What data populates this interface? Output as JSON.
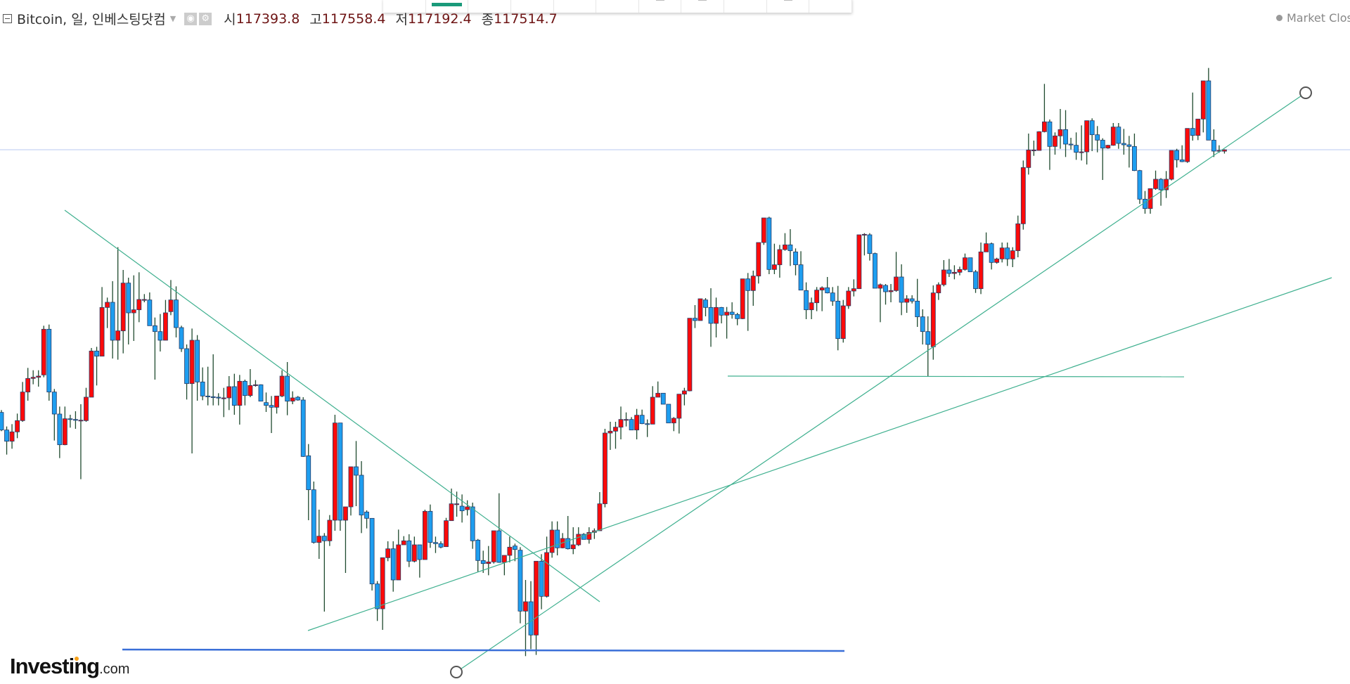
{
  "header": {
    "symbol_title": "Bitcoin, 일, 인베스팅닷컴",
    "open_label": "시",
    "open_value": "117393.8",
    "high_label": "고",
    "high_value": "117558.4",
    "low_label": "저",
    "low_value": "117192.4",
    "close_label": "종",
    "close_value": "117514.7",
    "icons": [
      "collapse-icon",
      "dropdown-caret-icon",
      "eye-icon",
      "gear-icon"
    ]
  },
  "status": {
    "market": "Market Clos"
  },
  "logo": {
    "name": "Investing",
    "suffix": ".com"
  },
  "colors": {
    "up": "#ff0a0a",
    "down": "#1e9ef0",
    "wick": "#1f4a2e",
    "border": "#243a66",
    "trendline": "#3fb08f",
    "support": "#3a6fd8",
    "price_line": "#b9c9f2"
  },
  "chart_data": {
    "type": "candlestick",
    "title": "Bitcoin, 일, 인베스팅닷컴",
    "interval": "daily",
    "ylim": [
      72000,
      130300
    ],
    "fields": [
      "open",
      "high",
      "low",
      "close"
    ],
    "last_price": 117514.7,
    "candles": [
      [
        95100,
        95300,
        93500,
        93600
      ],
      [
        93600,
        93900,
        91500,
        92640
      ],
      [
        92640,
        94100,
        92000,
        93440
      ],
      [
        93440,
        95000,
        92900,
        94400
      ],
      [
        94400,
        97700,
        94300,
        96840
      ],
      [
        96840,
        98900,
        96100,
        98000
      ],
      [
        98000,
        98700,
        97500,
        98100
      ],
      [
        98100,
        98700,
        97300,
        98200
      ],
      [
        98300,
        102500,
        98100,
        102200
      ],
      [
        102200,
        102600,
        96100,
        96840
      ],
      [
        96840,
        97100,
        92700,
        94960
      ],
      [
        94960,
        95600,
        91200,
        92340
      ],
      [
        92340,
        95600,
        92300,
        94560
      ],
      [
        94560,
        94900,
        93800,
        94500
      ],
      [
        94500,
        95200,
        93700,
        94440
      ],
      [
        94440,
        95800,
        89400,
        94440
      ],
      [
        94400,
        97200,
        94300,
        96400
      ],
      [
        96400,
        100600,
        96400,
        100340
      ],
      [
        100340,
        100700,
        97400,
        99900
      ],
      [
        99900,
        105800,
        99900,
        104060
      ],
      [
        104060,
        104900,
        102300,
        104500
      ],
      [
        104500,
        106300,
        99700,
        101260
      ],
      [
        101260,
        109200,
        99600,
        102060
      ],
      [
        102060,
        107260,
        100140,
        106140
      ],
      [
        106140,
        106600,
        100900,
        103600
      ],
      [
        103600,
        106800,
        101200,
        103860
      ],
      [
        103860,
        107060,
        102800,
        104740
      ],
      [
        104740,
        105200,
        104500,
        104740
      ],
      [
        104700,
        105340,
        102500,
        102500
      ],
      [
        102500,
        103200,
        97900,
        102000
      ],
      [
        102000,
        103500,
        100300,
        101260
      ],
      [
        101260,
        104700,
        101260,
        103600
      ],
      [
        103700,
        106400,
        103400,
        104700
      ],
      [
        104700,
        105860,
        101500,
        102340
      ],
      [
        102340,
        102500,
        100260,
        100540
      ],
      [
        100540,
        100900,
        96200,
        97560
      ],
      [
        97560,
        102260,
        91600,
        101260
      ],
      [
        101260,
        101700,
        96100,
        97700
      ],
      [
        97700,
        98940,
        96140,
        96500
      ],
      [
        96500,
        99000,
        95700,
        96440
      ],
      [
        96440,
        100060,
        95700,
        96400
      ],
      [
        96400,
        96740,
        95700,
        96340
      ],
      [
        96340,
        97200,
        94700,
        96340
      ],
      [
        96340,
        98200,
        95300,
        97300
      ],
      [
        97300,
        98400,
        94900,
        95700
      ],
      [
        95700,
        98300,
        94060,
        97760
      ],
      [
        97760,
        97900,
        95700,
        96540
      ],
      [
        96540,
        98800,
        96400,
        97400
      ],
      [
        97400,
        97860,
        97300,
        97460
      ],
      [
        97460,
        97500,
        96060,
        96060
      ],
      [
        95940,
        96800,
        95140,
        95700
      ],
      [
        95700,
        96500,
        93340,
        95540
      ],
      [
        95540,
        96500,
        95000,
        96500
      ],
      [
        96500,
        98700,
        96400,
        98200
      ],
      [
        98200,
        99400,
        94860,
        96060
      ],
      [
        96060,
        96900,
        95800,
        96340
      ],
      [
        96400,
        96500,
        96100,
        96160
      ],
      [
        96160,
        96400,
        91300,
        91340
      ],
      [
        91400,
        92400,
        85900,
        88500
      ],
      [
        88500,
        89200,
        83900,
        84000
      ],
      [
        84000,
        86800,
        82600,
        84540
      ],
      [
        84540,
        84800,
        78100,
        84140
      ],
      [
        84140,
        86340,
        83700,
        85900
      ],
      [
        85900,
        94900,
        85000,
        94200
      ],
      [
        94200,
        94200,
        85000,
        85900
      ],
      [
        85900,
        87040,
        81400,
        87040
      ],
      [
        87040,
        90460,
        86300,
        90460
      ],
      [
        90460,
        92660,
        87100,
        89740
      ],
      [
        89740,
        90940,
        84800,
        86340
      ],
      [
        86600,
        86740,
        85200,
        86060
      ],
      [
        86060,
        86060,
        79900,
        80460
      ],
      [
        80460,
        80700,
        77300,
        78340
      ],
      [
        78340,
        82700,
        76540,
        82700
      ],
      [
        82700,
        84100,
        82400,
        83460
      ],
      [
        83460,
        84100,
        79800,
        80800
      ],
      [
        80800,
        85100,
        80800,
        83800
      ],
      [
        83800,
        84540,
        83800,
        84140
      ],
      [
        84140,
        84700,
        81900,
        82400
      ],
      [
        82400,
        84500,
        82300,
        83800
      ],
      [
        83800,
        83800,
        81000,
        82540
      ],
      [
        82540,
        86800,
        82540,
        86660
      ],
      [
        86660,
        87240,
        83540,
        84000
      ],
      [
        84000,
        84500,
        83100,
        83900
      ],
      [
        83900,
        84100,
        83500,
        83600
      ],
      [
        83640,
        86100,
        83640,
        85860
      ],
      [
        85860,
        88600,
        85860,
        87300
      ],
      [
        87300,
        88340,
        86200,
        87300
      ],
      [
        87100,
        88100,
        85700,
        86700
      ],
      [
        86800,
        87600,
        86300,
        87040
      ],
      [
        87040,
        87400,
        83460,
        84140
      ],
      [
        84200,
        84300,
        81500,
        82460
      ],
      [
        82460,
        83300,
        81400,
        82200
      ],
      [
        82200,
        83700,
        81200,
        82340
      ],
      [
        82340,
        85000,
        82200,
        85000
      ],
      [
        85000,
        88200,
        82260,
        82300
      ],
      [
        82300,
        82900,
        81200,
        82900
      ],
      [
        82900,
        84500,
        82300,
        83600
      ],
      [
        83700,
        83900,
        82400,
        83400
      ],
      [
        83340,
        83600,
        77100,
        78140
      ],
      [
        78140,
        80800,
        74300,
        78940
      ],
      [
        78940,
        80700,
        74900,
        76100
      ],
      [
        76100,
        82400,
        74400,
        82400
      ],
      [
        82400,
        83000,
        78300,
        79400
      ],
      [
        79400,
        84500,
        79300,
        83140
      ],
      [
        83140,
        85800,
        82700,
        85060
      ],
      [
        85060,
        85800,
        82900,
        83540
      ],
      [
        83540,
        84800,
        83500,
        84340
      ],
      [
        84340,
        86260,
        83400,
        83460
      ],
      [
        83460,
        85300,
        83000,
        83800
      ],
      [
        83800,
        85300,
        83700,
        84700
      ],
      [
        84700,
        84800,
        84260,
        84260
      ],
      [
        84260,
        85300,
        83900,
        84860
      ],
      [
        84860,
        85200,
        84300,
        85000
      ],
      [
        85000,
        88300,
        85000,
        87300
      ],
      [
        87300,
        93700,
        87000,
        93340
      ],
      [
        93340,
        94300,
        91900,
        93500
      ],
      [
        93500,
        94300,
        92000,
        93840
      ],
      [
        93840,
        95600,
        92800,
        94500
      ],
      [
        94500,
        95100,
        93900,
        94500
      ],
      [
        94500,
        94700,
        93600,
        93600
      ],
      [
        93600,
        95400,
        92800,
        94860
      ],
      [
        94860,
        95340,
        94100,
        94140
      ],
      [
        94140,
        94500,
        93000,
        94100
      ],
      [
        94100,
        97340,
        94100,
        96400
      ],
      [
        96400,
        97740,
        96400,
        96740
      ],
      [
        96740,
        96740,
        95800,
        95800
      ],
      [
        95800,
        95800,
        94200,
        94200
      ],
      [
        94200,
        94700,
        93500,
        94600
      ],
      [
        94600,
        96660,
        93300,
        96660
      ],
      [
        96660,
        97200,
        95700,
        96940
      ],
      [
        96940,
        103140,
        96900,
        103140
      ],
      [
        103140,
        104260,
        102300,
        102940
      ],
      [
        102940,
        104800,
        102940,
        104800
      ],
      [
        104700,
        104860,
        103300,
        104060
      ],
      [
        104060,
        105700,
        100700,
        102700
      ],
      [
        102700,
        104900,
        101500,
        104060
      ],
      [
        104060,
        104100,
        102700,
        103400
      ],
      [
        103400,
        104100,
        101400,
        103660
      ],
      [
        103660,
        104500,
        103100,
        103460
      ],
      [
        103460,
        103600,
        102540,
        103100
      ],
      [
        103100,
        106500,
        103060,
        106500
      ],
      [
        106500,
        107000,
        102060,
        105500
      ],
      [
        105500,
        107200,
        104200,
        106740
      ],
      [
        106740,
        109600,
        106100,
        109600
      ],
      [
        109600,
        111700,
        109400,
        111700
      ],
      [
        111700,
        111800,
        106900,
        107300
      ],
      [
        107300,
        109500,
        106900,
        107700
      ],
      [
        107700,
        109400,
        106600,
        109000
      ],
      [
        109000,
        110400,
        108900,
        109400
      ],
      [
        109400,
        110740,
        107600,
        108900
      ],
      [
        108800,
        109100,
        106800,
        107700
      ],
      [
        107700,
        108860,
        105540,
        105540
      ],
      [
        105500,
        106200,
        103060,
        103860
      ],
      [
        103860,
        104900,
        103060,
        104460
      ],
      [
        104460,
        105800,
        103740,
        105540
      ],
      [
        105540,
        105860,
        103740,
        105740
      ],
      [
        105740,
        106660,
        105260,
        105300
      ],
      [
        105300,
        105800,
        104200,
        104600
      ],
      [
        104600,
        105900,
        100400,
        101400
      ],
      [
        101400,
        104700,
        101060,
        104200
      ],
      [
        104200,
        105800,
        103940,
        105460
      ],
      [
        105460,
        106460,
        105000,
        105660
      ],
      [
        105660,
        110260,
        105660,
        110260
      ],
      [
        110260,
        110400,
        108500,
        110300
      ],
      [
        110260,
        110400,
        108060,
        108660
      ],
      [
        108660,
        108740,
        105700,
        105700
      ],
      [
        105700,
        106100,
        102800,
        106000
      ],
      [
        105940,
        106060,
        104300,
        105400
      ],
      [
        105400,
        106060,
        104500,
        105500
      ],
      [
        105500,
        108800,
        105400,
        106660
      ],
      [
        106660,
        107740,
        103400,
        104500
      ],
      [
        104500,
        105100,
        103600,
        104800
      ],
      [
        104800,
        105100,
        104400,
        104600
      ],
      [
        104600,
        106500,
        102400,
        103260
      ],
      [
        103260,
        103900,
        100900,
        102000
      ],
      [
        102000,
        103300,
        98200,
        100900
      ],
      [
        100700,
        105940,
        99600,
        105300
      ],
      [
        105300,
        106200,
        104700,
        106000
      ],
      [
        106000,
        108100,
        105860,
        107260
      ],
      [
        107260,
        108200,
        106660,
        106960
      ],
      [
        106960,
        107660,
        106460,
        107060
      ],
      [
        107060,
        107540,
        106800,
        107300
      ],
      [
        107300,
        108660,
        107200,
        108300
      ],
      [
        108300,
        108300,
        107100,
        107100
      ],
      [
        107100,
        107260,
        105300,
        105660
      ],
      [
        105660,
        109600,
        105200,
        108800
      ],
      [
        108800,
        110460,
        108800,
        109500
      ],
      [
        109500,
        109600,
        107300,
        107900
      ],
      [
        107900,
        108300,
        107800,
        108200
      ],
      [
        108200,
        109600,
        107900,
        109140
      ],
      [
        109140,
        109600,
        107600,
        108200
      ],
      [
        108200,
        109200,
        107500,
        108900
      ],
      [
        108900,
        111900,
        108340,
        111200
      ],
      [
        111200,
        116600,
        110700,
        116000
      ],
      [
        116000,
        118900,
        115400,
        117500
      ],
      [
        117500,
        118300,
        117000,
        117500
      ],
      [
        117460,
        119100,
        117460,
        119060
      ],
      [
        119060,
        123140,
        119000,
        119900
      ],
      [
        119900,
        120100,
        115800,
        117800
      ],
      [
        117800,
        119000,
        117100,
        118700
      ],
      [
        118700,
        121000,
        117600,
        119240
      ],
      [
        119240,
        120900,
        116900,
        118000
      ],
      [
        118000,
        118540,
        117540,
        117940
      ],
      [
        117900,
        119000,
        116660,
        117300
      ],
      [
        117300,
        119600,
        116600,
        117340
      ],
      [
        117340,
        120000,
        116260,
        120000
      ],
      [
        120000,
        120200,
        117400,
        118800
      ],
      [
        118800,
        119540,
        117300,
        118340
      ],
      [
        118340,
        118500,
        114940,
        117660
      ],
      [
        117660,
        117940,
        117600,
        117900
      ],
      [
        117900,
        119800,
        117860,
        119460
      ],
      [
        119460,
        119800,
        117600,
        118060
      ],
      [
        118060,
        119300,
        117100,
        117940
      ],
      [
        117940,
        118700,
        116000,
        117800
      ],
      [
        117800,
        118900,
        115700,
        115740
      ],
      [
        115740,
        115800,
        112900,
        113300
      ],
      [
        113300,
        114000,
        112060,
        112500
      ],
      [
        112500,
        114200,
        112060,
        114200
      ],
      [
        114200,
        115740,
        114100,
        115000
      ],
      [
        115000,
        115100,
        112740,
        114100
      ],
      [
        114100,
        115700,
        113400,
        115000
      ],
      [
        115000,
        117460,
        114900,
        117460
      ],
      [
        117460,
        117600,
        116000,
        116660
      ],
      [
        116660,
        117900,
        116460,
        116500
      ],
      [
        116500,
        119340,
        116400,
        119340
      ],
      [
        119340,
        122400,
        118300,
        118740
      ],
      [
        118740,
        120140,
        118340,
        120140
      ],
      [
        120140,
        123400,
        119000,
        123400
      ],
      [
        123400,
        124500,
        118340,
        118340
      ],
      [
        118340,
        119260,
        116900,
        117400
      ],
      [
        117400,
        117900,
        117260,
        117460
      ],
      [
        117393.8,
        117558.4,
        117192.4,
        117514.7
      ]
    ],
    "drawings": [
      {
        "kind": "trendline",
        "name": "descending-resistance"
      },
      {
        "kind": "trendline",
        "name": "rising-support-long"
      },
      {
        "kind": "trendline",
        "name": "rising-support-steep",
        "endpoint_handles": true
      },
      {
        "kind": "horizontal",
        "name": "green-support-level"
      },
      {
        "kind": "horizontal",
        "name": "blue-support-level"
      }
    ]
  }
}
